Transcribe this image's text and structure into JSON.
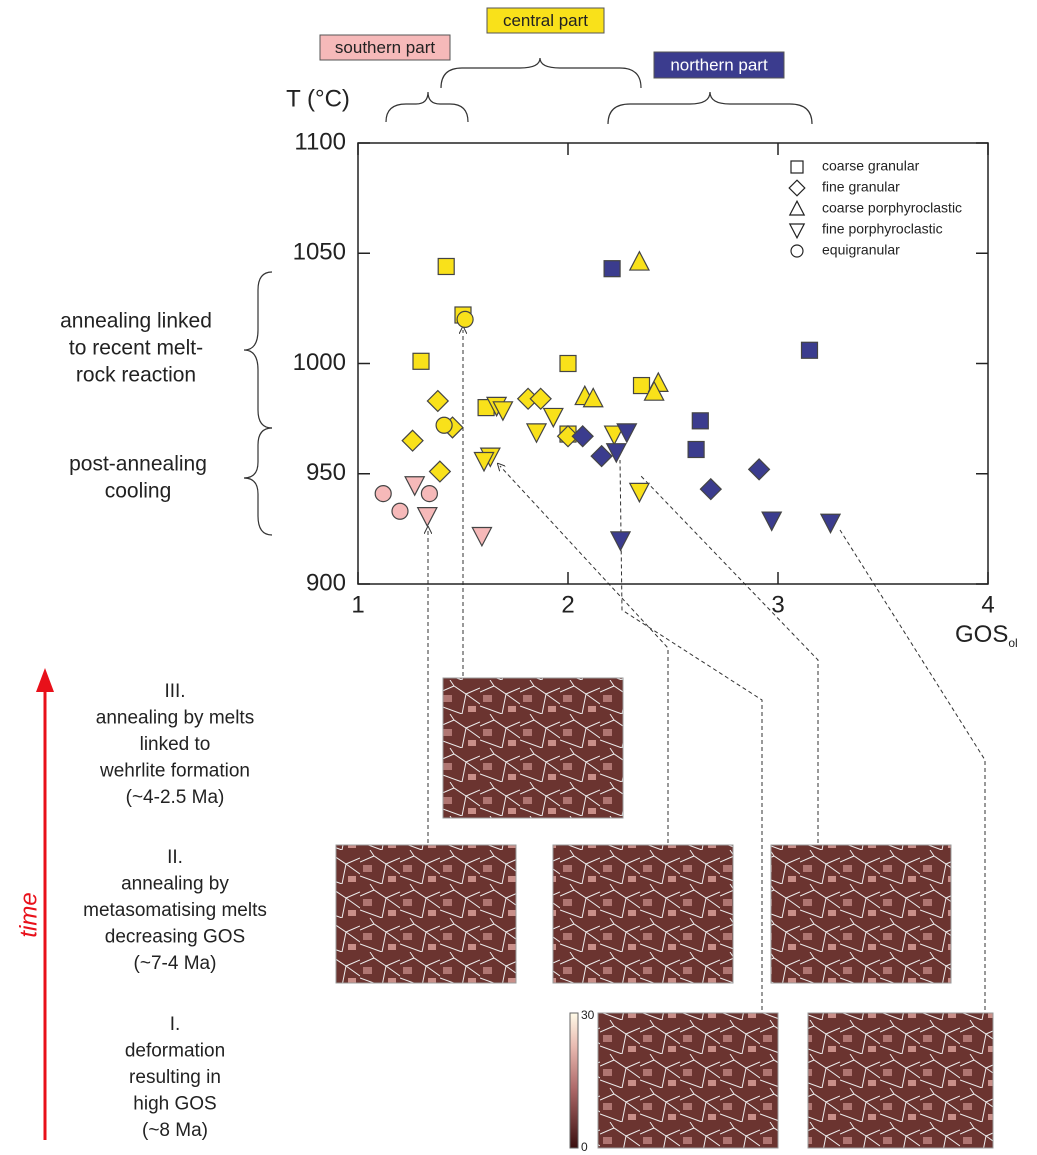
{
  "chart_data": {
    "type": "scatter",
    "ylabel": "T (°C)",
    "xlabel": {
      "text": "GOS",
      "sub": "ol"
    },
    "xlim": [
      1,
      4
    ],
    "xticks": [
      1,
      2,
      3,
      4
    ],
    "ylim": [
      900,
      1100
    ],
    "yticks": [
      900,
      950,
      1000,
      1050,
      1100
    ],
    "regions": [
      {
        "name": "southern part",
        "color": "#f6b9b9"
      },
      {
        "name": "central part",
        "color": "#f9e11a"
      },
      {
        "name": "northern part",
        "color": "#3b3c8e"
      }
    ],
    "series": [
      {
        "name": "coarse granular",
        "marker": "square",
        "x": [
          1.42,
          1.3,
          1.5,
          2.0,
          2.0,
          1.61,
          2.35,
          2.21,
          3.15,
          2.63,
          2.61
        ],
        "y": [
          1044,
          1001,
          1022,
          1000,
          968,
          980,
          990,
          1043,
          1006,
          974,
          961
        ],
        "colors": [
          "#f9e11a",
          "#f9e11a",
          "#f9e11a",
          "#f9e11a",
          "#f9e11a",
          "#f9e11a",
          "#f9e11a",
          "#3b3c8e",
          "#3b3c8e",
          "#3b3c8e",
          "#3b3c8e"
        ]
      },
      {
        "name": "fine granular",
        "marker": "diamond",
        "x": [
          1.38,
          1.26,
          1.45,
          1.39,
          1.81,
          1.87,
          2.0,
          2.07,
          2.16,
          2.68,
          2.91
        ],
        "y": [
          983,
          965,
          971,
          951,
          984,
          984,
          967,
          967,
          958,
          943,
          952
        ],
        "colors": [
          "#f9e11a",
          "#f9e11a",
          "#f9e11a",
          "#f9e11a",
          "#f9e11a",
          "#f9e11a",
          "#f9e11a",
          "#3b3c8e",
          "#3b3c8e",
          "#3b3c8e",
          "#3b3c8e"
        ]
      },
      {
        "name": "coarse porphyroclastic",
        "marker": "up",
        "x": [
          2.34,
          2.08,
          2.12,
          2.43,
          2.41
        ],
        "y": [
          1046,
          985,
          984,
          991,
          987
        ],
        "colors": [
          "#f9e11a",
          "#f9e11a",
          "#f9e11a",
          "#f9e11a",
          "#f9e11a"
        ]
      },
      {
        "name": "fine porphyroclastic",
        "marker": "down",
        "x": [
          1.66,
          1.69,
          1.93,
          1.85,
          1.63,
          1.6,
          2.22,
          2.34,
          2.28,
          2.23,
          2.25,
          2.97,
          3.25,
          1.27,
          1.33,
          1.59
        ],
        "y": [
          981,
          979,
          976,
          969,
          958,
          956,
          968,
          942,
          969,
          960,
          920,
          929,
          928,
          945,
          931,
          922
        ],
        "colors": [
          "#f9e11a",
          "#f9e11a",
          "#f9e11a",
          "#f9e11a",
          "#f9e11a",
          "#f9e11a",
          "#f9e11a",
          "#f9e11a",
          "#3b3c8e",
          "#3b3c8e",
          "#3b3c8e",
          "#3b3c8e",
          "#3b3c8e",
          "#f6b9b9",
          "#f6b9b9",
          "#f6b9b9"
        ]
      },
      {
        "name": "equigranular",
        "marker": "circle",
        "x": [
          1.51,
          1.41,
          1.12,
          1.2,
          1.34
        ],
        "y": [
          1020,
          972,
          941,
          933,
          941
        ],
        "colors": [
          "#f9e11a",
          "#f9e11a",
          "#f6b9b9",
          "#f6b9b9",
          "#f6b9b9"
        ]
      }
    ]
  },
  "annotations": {
    "upper_brace": [
      "annealing linked",
      "to recent melt-",
      "rock reaction"
    ],
    "lower_brace": [
      "post-annealing",
      "cooling"
    ],
    "time": "time",
    "stages": [
      [
        "III.",
        "annealing by melts",
        "linked to",
        "wehrlite formation",
        "(~4-2.5 Ma)"
      ],
      [
        "II.",
        "annealing by",
        "metasomatising melts",
        "decreasing GOS",
        "(~7-4 Ma)"
      ],
      [
        "I.",
        "deformation",
        "resulting in",
        "high GOS",
        "(~8 Ma)"
      ]
    ],
    "colorbar": {
      "max": "30",
      "min": "0"
    }
  }
}
